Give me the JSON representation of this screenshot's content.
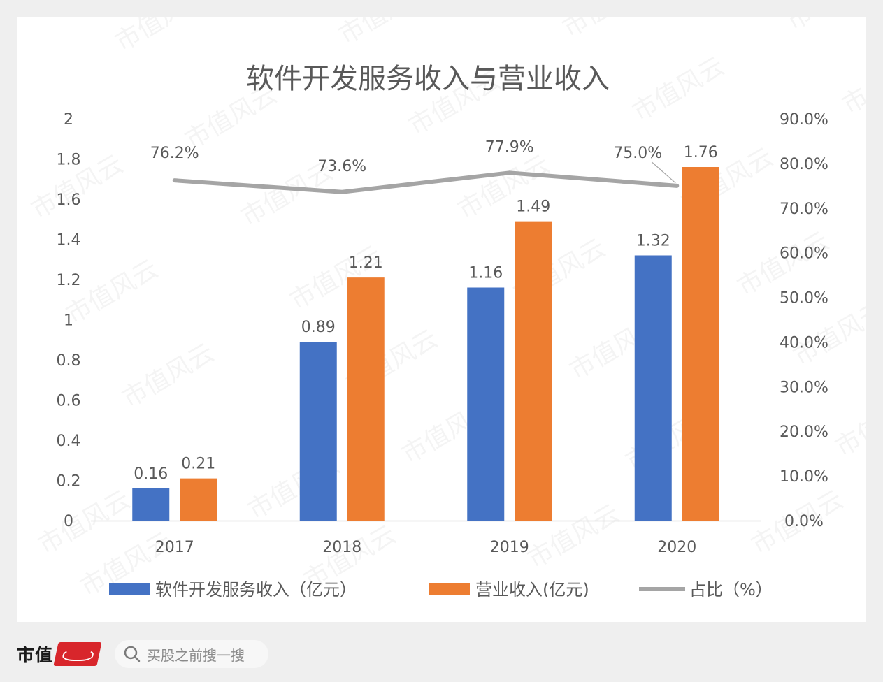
{
  "chart_data": {
    "type": "bar",
    "title": "软件开发服务收入与营业收入",
    "categories": [
      "2017",
      "2018",
      "2019",
      "2020"
    ],
    "series": [
      {
        "name": "软件开发服务收入（亿元）",
        "type": "bar",
        "axis": "left",
        "color": "#4472c4",
        "values": [
          0.16,
          0.89,
          1.16,
          1.32
        ],
        "labels": [
          "0.16",
          "0.89",
          "1.16",
          "1.32"
        ]
      },
      {
        "name": "营业收入(亿元)",
        "type": "bar",
        "axis": "left",
        "color": "#ed7d31",
        "values": [
          0.21,
          1.21,
          1.49,
          1.76
        ],
        "labels": [
          "0.21",
          "1.21",
          "1.49",
          "1.76"
        ]
      },
      {
        "name": "占比（%）",
        "type": "line",
        "axis": "right",
        "color": "#a5a5a5",
        "values": [
          76.2,
          73.6,
          77.9,
          75.0
        ],
        "labels": [
          "76.2%",
          "73.6%",
          "77.9%",
          "75.0%"
        ]
      }
    ],
    "y_left": {
      "ylim": [
        0,
        2
      ],
      "ticks": [
        0,
        0.2,
        0.4,
        0.6,
        0.8,
        1,
        1.2,
        1.4,
        1.6,
        1.8,
        2
      ],
      "tick_labels": [
        "0",
        "0.2",
        "0.4",
        "0.6",
        "0.8",
        "1",
        "1.2",
        "1.4",
        "1.6",
        "1.8",
        "2"
      ]
    },
    "y_right": {
      "ylim": [
        0,
        90
      ],
      "ticks": [
        0,
        10,
        20,
        30,
        40,
        50,
        60,
        70,
        80,
        90
      ],
      "tick_labels": [
        "0.0%",
        "10.0%",
        "20.0%",
        "30.0%",
        "40.0%",
        "50.0%",
        "60.0%",
        "70.0%",
        "80.0%",
        "90.0%"
      ]
    },
    "grid": false,
    "legend_position": "bottom"
  },
  "watermark": "市值风云",
  "footer": {
    "brand": "市值",
    "search_placeholder": "买股之前搜一搜",
    "search_icon": "search-icon"
  },
  "colors": {
    "bar_blue": "#4472c4",
    "bar_orange": "#ed7d31",
    "line_gray": "#a5a5a5",
    "text": "#595959"
  }
}
